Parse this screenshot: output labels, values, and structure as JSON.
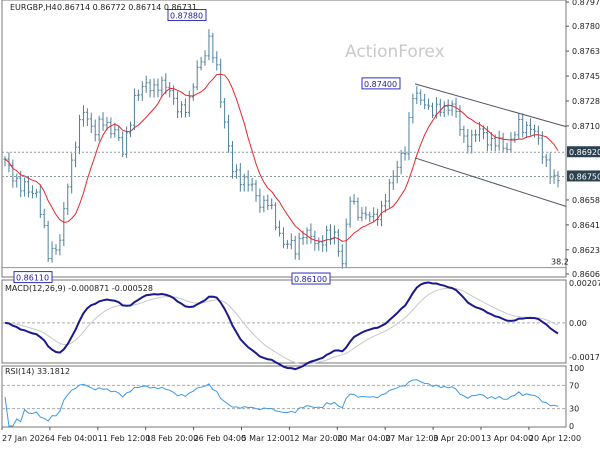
{
  "header": {
    "symbol": "EURGBP,H4",
    "ohlc": "0.86714 0.86772 0.86714 0.86731"
  },
  "watermark": "ActionForex",
  "colors": {
    "bars": "#4f7f9c",
    "ma": "#e8262a",
    "macd": "#1a1a8c",
    "signal": "#c8c8c8",
    "rsi": "#3d9be9",
    "tag": "#2d4250"
  },
  "chart_data": [
    {
      "type": "ohlc",
      "title": "EURGBP,H4",
      "ylim": [
        0.86065,
        0.87975
      ],
      "yticks": [
        "0.87975",
        "0.87805",
        "0.87630",
        "0.87455",
        "0.87280",
        "0.87105",
        "0.86585",
        "0.86410",
        "0.86235",
        "0.86065"
      ],
      "xticks": [
        "27 Jan 2026",
        "4 Feb 04:00",
        "11 Feb 12:00",
        "18 Feb 20:00",
        "26 Feb 04:00",
        "5 Mar 12:00",
        "12 Mar 20:00",
        "20 Mar 04:00",
        "27 Mar 12:00",
        "3 Apr 20:00",
        "13 Apr 04:00",
        "20 Apr 12:00"
      ],
      "close_path": [
        [
          0,
          0.86852
        ],
        [
          4,
          0.86674
        ],
        [
          8,
          0.86638
        ],
        [
          11,
          0.86212
        ],
        [
          14,
          0.86283
        ],
        [
          16,
          0.86709
        ],
        [
          18,
          0.86994
        ],
        [
          20,
          0.87207
        ],
        [
          23,
          0.87065
        ],
        [
          25,
          0.87136
        ],
        [
          28,
          0.87065
        ],
        [
          30,
          0.86923
        ],
        [
          33,
          0.87278
        ],
        [
          36,
          0.8742
        ],
        [
          38,
          0.87349
        ],
        [
          41,
          0.8742
        ],
        [
          44,
          0.87207
        ],
        [
          47,
          0.87278
        ],
        [
          49,
          0.87491
        ],
        [
          52,
          0.87705
        ],
        [
          54,
          0.87491
        ],
        [
          56,
          0.87136
        ],
        [
          58,
          0.8678
        ],
        [
          62,
          0.86709
        ],
        [
          65,
          0.86567
        ],
        [
          67,
          0.86567
        ],
        [
          71,
          0.86283
        ],
        [
          74,
          0.86247
        ],
        [
          76,
          0.86354
        ],
        [
          80,
          0.86283
        ],
        [
          84,
          0.86354
        ],
        [
          86,
          0.86141
        ],
        [
          88,
          0.86603
        ],
        [
          91,
          0.86461
        ],
        [
          96,
          0.86496
        ],
        [
          99,
          0.8678
        ],
        [
          102,
          0.86923
        ],
        [
          104,
          0.87349
        ],
        [
          107,
          0.87243
        ],
        [
          112,
          0.87207
        ],
        [
          114,
          0.87278
        ],
        [
          117,
          0.86994
        ],
        [
          121,
          0.87065
        ],
        [
          124,
          0.86994
        ],
        [
          128,
          0.86958
        ],
        [
          131,
          0.871
        ],
        [
          134,
          0.871
        ],
        [
          136,
          0.86994
        ],
        [
          138,
          0.86852
        ],
        [
          140,
          0.86709
        ],
        [
          141,
          0.86731
        ]
      ],
      "horizontal_levels": [
        {
          "price": 0.8692,
          "label": "0.86920",
          "style": "dashed"
        },
        {
          "price": 0.8675,
          "label": "0.86750",
          "style": "dashed"
        },
        {
          "price": 0.8611,
          "label": "38.2",
          "style": "solid"
        }
      ],
      "annotations": [
        "0.87880",
        "0.87400",
        "0.86110",
        "0.86100"
      ],
      "channel": {
        "upper": [
          0.874,
          0.871
        ],
        "lower": [
          0.8688,
          0.8654
        ]
      }
    },
    {
      "type": "line",
      "title": "MACD(12,26,9) -0.000871 -0.000528",
      "yticks": [
        "0.002072",
        "0.00",
        "-0.001778"
      ],
      "ylim": [
        -0.001778,
        0.002072
      ]
    },
    {
      "type": "line",
      "title": "RSI(14) 33.1812",
      "yticks": [
        "100",
        "70",
        "30",
        "0"
      ],
      "ylim": [
        0,
        100
      ]
    }
  ]
}
